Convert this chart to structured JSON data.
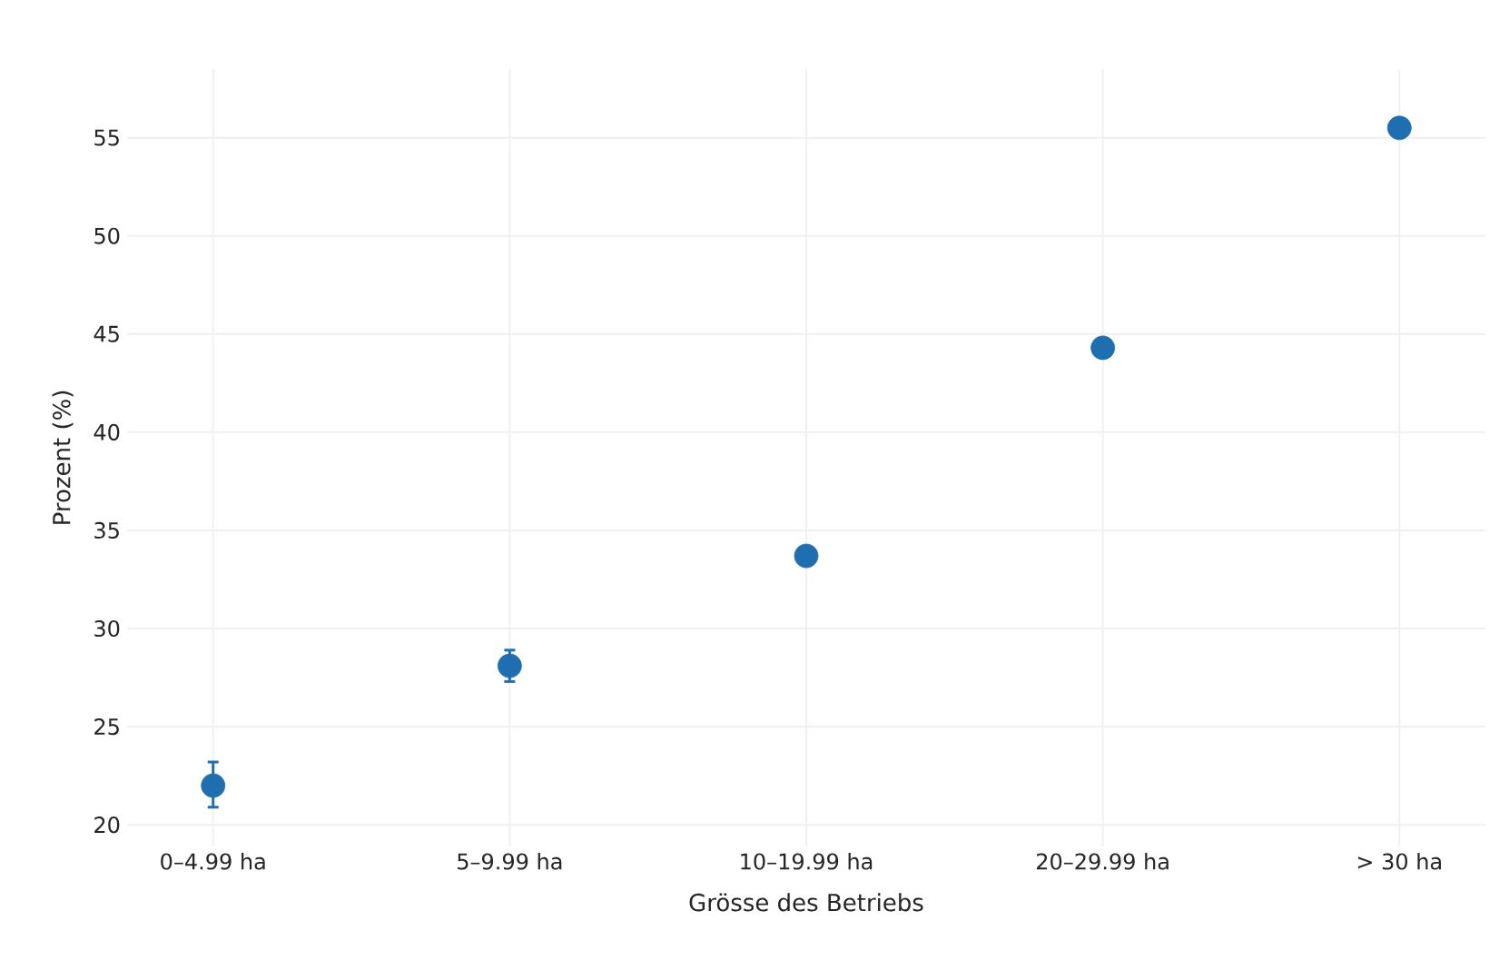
{
  "chart_data": {
    "type": "scatter",
    "xlabel": "Grösse des Betriebs",
    "ylabel": "Prozent (%)",
    "categories": [
      "0–4.99 ha",
      "5–9.99 ha",
      "10–19.99 ha",
      "20–29.99 ha",
      "> 30 ha"
    ],
    "values": [
      22.0,
      28.1,
      33.7,
      44.3,
      55.5
    ],
    "errors": [
      [
        20.9,
        23.2
      ],
      [
        27.3,
        28.9
      ],
      null,
      null,
      null
    ],
    "color": "#1f6fb0",
    "marker": "circle",
    "grid": true,
    "ylim": [
      18.9,
      58.5
    ],
    "yticks": [
      20,
      25,
      30,
      35,
      40,
      45,
      50,
      55
    ]
  }
}
